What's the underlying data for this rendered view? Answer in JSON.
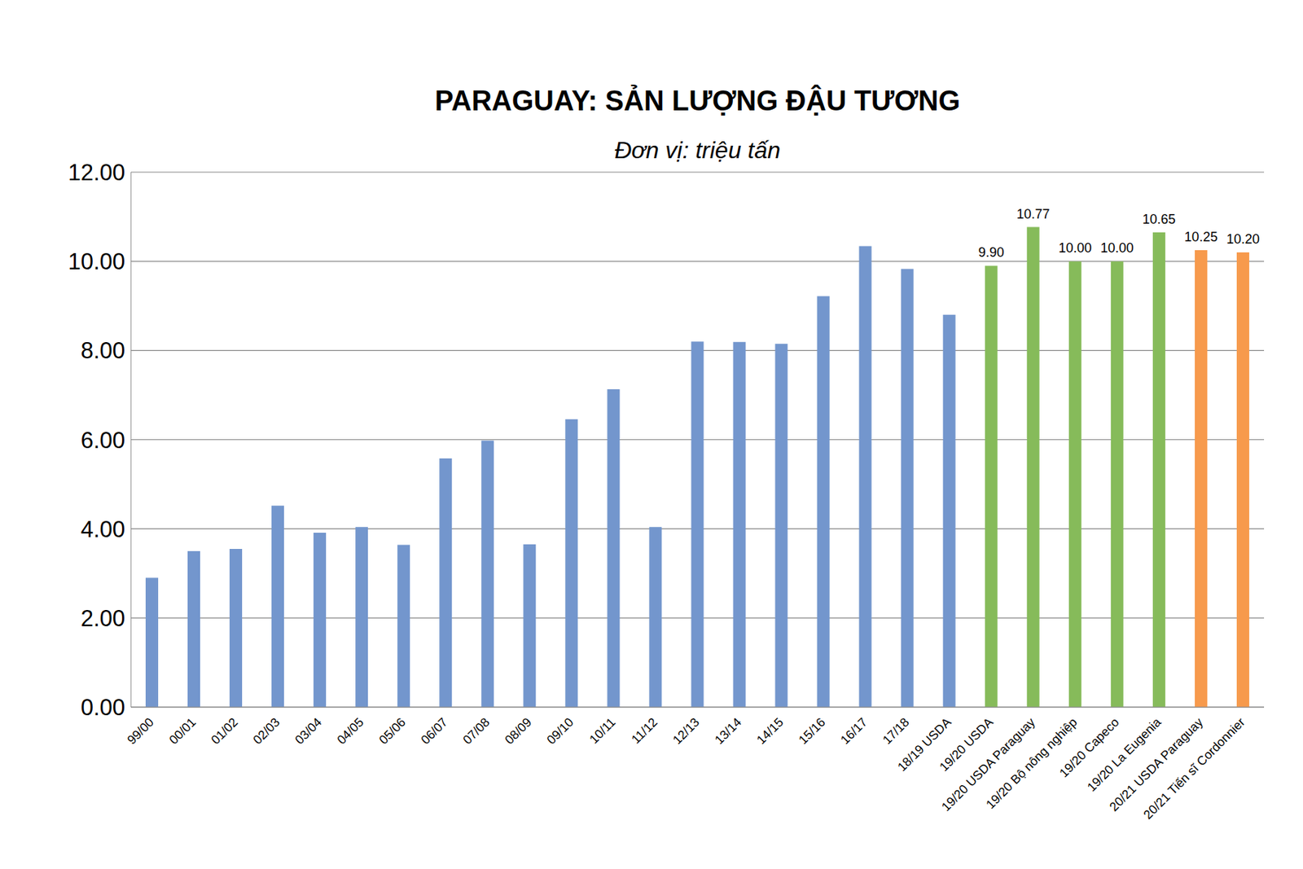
{
  "chart_data": {
    "type": "bar",
    "title": "PARAGUAY: SẢN LƯỢNG ĐẬU TƯƠNG",
    "subtitle": "Đơn vị: triệu tấn",
    "categories": [
      "99/00",
      "00/01",
      "01/02",
      "02/03",
      "03/04",
      "04/05",
      "05/06",
      "06/07",
      "07/08",
      "08/09",
      "09/10",
      "10/11",
      "11/12",
      "12/13",
      "13/14",
      "14/15",
      "15/16",
      "16/17",
      "17/18",
      "18/19 USDA",
      "19/20 USDA",
      "19/20 USDA Paraguay",
      "19/20 Bộ nông nghiệp",
      "19/20 Capeco",
      "19/20 La Eugenia",
      "20/21 USDA Paraguay",
      "20/21 Tiến sĩ Cordonnier"
    ],
    "values": [
      2.9,
      3.5,
      3.55,
      4.52,
      3.91,
      4.04,
      3.64,
      5.58,
      5.98,
      3.65,
      6.46,
      7.13,
      4.04,
      8.2,
      8.19,
      8.15,
      9.22,
      10.34,
      9.83,
      8.8,
      9.9,
      10.77,
      10.0,
      10.0,
      10.65,
      10.25,
      10.2
    ],
    "value_labels": [
      null,
      null,
      null,
      null,
      null,
      null,
      null,
      null,
      null,
      null,
      null,
      null,
      null,
      null,
      null,
      null,
      null,
      null,
      null,
      null,
      "9.90",
      "10.77",
      "10.00",
      "10.00",
      "10.65",
      "10.25",
      "10.20"
    ],
    "data_labels": true,
    "colors": [
      "#7396cd",
      "#7396cd",
      "#7396cd",
      "#7396cd",
      "#7396cd",
      "#7396cd",
      "#7396cd",
      "#7396cd",
      "#7396cd",
      "#7396cd",
      "#7396cd",
      "#7396cd",
      "#7396cd",
      "#7396cd",
      "#7396cd",
      "#7396cd",
      "#7396cd",
      "#7396cd",
      "#7396cd",
      "#7396cd",
      "#86bb5a",
      "#86bb5a",
      "#86bb5a",
      "#86bb5a",
      "#86bb5a",
      "#f79a4c",
      "#f79a4c"
    ],
    "ylim": [
      0,
      12
    ],
    "yticks": [
      {
        "value": 0,
        "label": "0.00"
      },
      {
        "value": 2,
        "label": "2.00"
      },
      {
        "value": 4,
        "label": "4.00"
      },
      {
        "value": 6,
        "label": "6.00"
      },
      {
        "value": 8,
        "label": "8.00"
      },
      {
        "value": 10,
        "label": "10.00"
      },
      {
        "value": 12,
        "label": "12.00"
      }
    ],
    "grid": true
  }
}
